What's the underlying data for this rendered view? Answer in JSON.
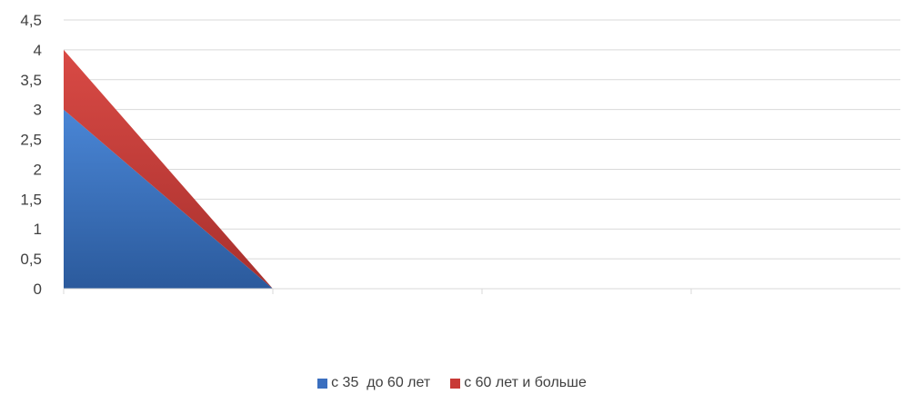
{
  "chart_data": {
    "type": "area",
    "stacked": true,
    "categories": [
      "",
      "",
      "",
      ""
    ],
    "series": [
      {
        "name": "с 35  до 60 лет",
        "values": [
          3,
          0,
          null,
          null
        ],
        "color": "#3b6fbf"
      },
      {
        "name": "с 60 лет и больше",
        "values": [
          1,
          0,
          null,
          null
        ],
        "color": "#c83a36"
      }
    ],
    "ylim": [
      0,
      4.5
    ],
    "yticks": [
      "0",
      "0,5",
      "1",
      "1,5",
      "2",
      "2,5",
      "3",
      "3,5",
      "4",
      "4,5"
    ],
    "grid": true,
    "legend_position": "bottom"
  }
}
